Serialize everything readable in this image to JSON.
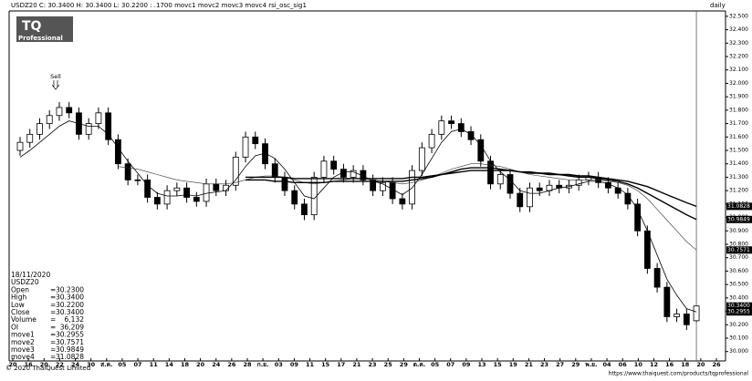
{
  "chart_data": {
    "type": "candlestick",
    "header_prefix": "USDZ20 C: 30.3400 H: 30.3400 L: 30.2200 : .1700",
    "header_suffix": "rsi_osc_sig1",
    "period": "daily",
    "logo": {
      "line1": "TQ",
      "line2": "Professional"
    },
    "annotations": [
      {
        "text": "Sell",
        "index": 4
      }
    ],
    "up_color": "#ffffff",
    "down_color": "#000000",
    "open": [
      31.5,
      31.56,
      31.62,
      31.7,
      31.76,
      31.82,
      31.78,
      31.62,
      31.7,
      31.78,
      31.58,
      31.4,
      31.28,
      31.28,
      31.15,
      31.1,
      31.2,
      31.22,
      31.15,
      31.12,
      31.25,
      31.2,
      31.24,
      31.45,
      31.6,
      31.55,
      31.4,
      31.3,
      31.2,
      31.1,
      31.02,
      31.3,
      31.42,
      31.36,
      31.3,
      31.35,
      31.28,
      31.2,
      31.26,
      31.14,
      31.1,
      31.35,
      31.52,
      31.62,
      31.72,
      31.7,
      31.64,
      31.58,
      31.42,
      31.25,
      31.32,
      31.18,
      31.08,
      31.22,
      31.2,
      31.24,
      31.22,
      31.24,
      31.28,
      31.3,
      31.26,
      31.22,
      31.18,
      31.1,
      30.9,
      30.62,
      30.48,
      30.26,
      30.28,
      30.23
    ],
    "high": [
      31.6,
      31.66,
      31.74,
      31.8,
      31.86,
      31.86,
      31.82,
      31.74,
      31.82,
      31.82,
      31.62,
      31.44,
      31.32,
      31.32,
      31.19,
      31.24,
      31.26,
      31.26,
      31.19,
      31.29,
      31.29,
      31.28,
      31.49,
      31.64,
      31.64,
      31.59,
      31.44,
      31.34,
      31.24,
      31.14,
      31.34,
      31.46,
      31.46,
      31.4,
      31.39,
      31.39,
      31.32,
      31.3,
      31.3,
      31.18,
      31.39,
      31.56,
      31.66,
      31.76,
      31.76,
      31.74,
      31.68,
      31.62,
      31.46,
      31.36,
      31.36,
      31.22,
      31.26,
      31.26,
      31.28,
      31.28,
      31.28,
      31.32,
      31.34,
      31.34,
      31.3,
      31.26,
      31.22,
      31.14,
      30.94,
      30.66,
      30.52,
      30.32,
      30.32,
      30.34
    ],
    "low": [
      31.46,
      31.52,
      31.58,
      31.66,
      31.72,
      31.74,
      31.58,
      31.58,
      31.66,
      31.54,
      31.36,
      31.24,
      31.24,
      31.11,
      31.06,
      31.06,
      31.16,
      31.11,
      31.08,
      31.08,
      31.16,
      31.16,
      31.2,
      31.41,
      31.51,
      31.36,
      31.26,
      31.16,
      31.06,
      30.98,
      30.98,
      31.26,
      31.32,
      31.26,
      31.26,
      31.24,
      31.16,
      31.16,
      31.1,
      31.06,
      31.06,
      31.31,
      31.48,
      31.58,
      31.66,
      31.6,
      31.54,
      31.38,
      31.21,
      31.21,
      31.14,
      31.04,
      31.04,
      31.16,
      31.16,
      31.18,
      31.18,
      31.2,
      31.24,
      31.22,
      31.18,
      31.14,
      31.06,
      30.86,
      30.58,
      30.44,
      30.22,
      30.22,
      30.16,
      30.22
    ],
    "close": [
      31.56,
      31.62,
      31.7,
      31.76,
      31.82,
      31.78,
      31.62,
      31.7,
      31.78,
      31.58,
      31.4,
      31.28,
      31.28,
      31.15,
      31.1,
      31.2,
      31.22,
      31.15,
      31.12,
      31.25,
      31.2,
      31.24,
      31.45,
      31.6,
      31.55,
      31.4,
      31.3,
      31.2,
      31.1,
      31.02,
      31.3,
      31.42,
      31.36,
      31.3,
      31.35,
      31.28,
      31.2,
      31.26,
      31.14,
      31.1,
      31.35,
      31.52,
      31.62,
      31.72,
      31.7,
      31.64,
      31.58,
      31.42,
      31.25,
      31.32,
      31.18,
      31.08,
      31.22,
      31.2,
      31.24,
      31.22,
      31.24,
      31.28,
      31.3,
      31.26,
      31.22,
      31.18,
      31.1,
      30.9,
      30.62,
      30.48,
      30.26,
      30.28,
      30.2,
      30.34
    ],
    "series": [
      {
        "name": "movc1",
        "color": "#000000",
        "values": [
          31.45,
          31.5,
          31.56,
          31.62,
          31.68,
          31.72,
          31.7,
          31.68,
          31.68,
          31.62,
          31.52,
          31.42,
          31.33,
          31.24,
          31.18,
          31.16,
          31.16,
          31.17,
          31.16,
          31.18,
          31.19,
          31.2,
          31.28,
          31.38,
          31.46,
          31.48,
          31.44,
          31.36,
          31.26,
          31.16,
          31.14,
          31.22,
          31.3,
          31.34,
          31.34,
          31.31,
          31.27,
          31.25,
          31.21,
          31.17,
          31.22,
          31.32,
          31.44,
          31.56,
          31.64,
          31.66,
          31.62,
          31.54,
          31.42,
          31.34,
          31.28,
          31.2,
          31.18,
          31.18,
          31.2,
          31.22,
          31.23,
          31.25,
          31.27,
          31.27,
          31.25,
          31.22,
          31.17,
          31.06,
          30.9,
          30.72,
          30.54,
          30.42,
          30.32,
          30.2955
        ]
      },
      {
        "name": "movc2",
        "color": "#333333",
        "values": [
          null,
          null,
          null,
          null,
          null,
          null,
          null,
          null,
          null,
          null,
          31.38,
          31.37,
          31.36,
          31.34,
          31.32,
          31.3,
          31.28,
          31.27,
          31.26,
          31.25,
          31.25,
          31.25,
          31.26,
          31.28,
          31.3,
          31.31,
          31.31,
          31.3,
          31.28,
          31.26,
          31.25,
          31.26,
          31.27,
          31.28,
          31.29,
          31.29,
          31.28,
          31.27,
          31.26,
          31.25,
          31.26,
          31.28,
          31.3,
          31.33,
          31.36,
          31.38,
          31.4,
          31.4,
          31.39,
          31.38,
          31.36,
          31.34,
          31.32,
          31.31,
          31.3,
          31.29,
          31.28,
          31.28,
          31.28,
          31.28,
          31.27,
          31.26,
          31.24,
          31.2,
          31.14,
          31.06,
          30.98,
          30.9,
          30.82,
          30.7571
        ]
      },
      {
        "name": "movc3",
        "color": "#000000",
        "values": [
          null,
          null,
          null,
          null,
          null,
          null,
          null,
          null,
          null,
          null,
          null,
          null,
          null,
          null,
          null,
          null,
          null,
          null,
          null,
          null,
          null,
          null,
          null,
          31.28,
          31.28,
          31.28,
          31.27,
          31.27,
          31.26,
          31.26,
          31.26,
          31.26,
          31.27,
          31.27,
          31.27,
          31.27,
          31.27,
          31.27,
          31.27,
          31.27,
          31.28,
          31.29,
          31.3,
          31.32,
          31.34,
          31.36,
          31.37,
          31.37,
          31.37,
          31.36,
          31.35,
          31.34,
          31.33,
          31.33,
          31.32,
          31.32,
          31.31,
          31.3,
          31.3,
          31.29,
          31.28,
          31.27,
          31.25,
          31.22,
          31.18,
          31.14,
          31.1,
          31.06,
          31.02,
          30.9849
        ]
      },
      {
        "name": "movc4",
        "color": "#000000",
        "values": [
          null,
          null,
          null,
          null,
          null,
          null,
          null,
          null,
          null,
          null,
          null,
          null,
          null,
          null,
          null,
          null,
          null,
          null,
          null,
          null,
          null,
          null,
          null,
          31.3,
          31.3,
          31.3,
          31.3,
          31.3,
          31.29,
          31.29,
          31.29,
          31.29,
          31.29,
          31.29,
          31.29,
          31.29,
          31.29,
          31.29,
          31.29,
          31.29,
          31.3,
          31.3,
          31.31,
          31.32,
          31.33,
          31.34,
          31.35,
          31.35,
          31.35,
          31.35,
          31.35,
          31.34,
          31.34,
          31.33,
          31.33,
          31.32,
          31.32,
          31.31,
          31.31,
          31.3,
          31.29,
          31.28,
          31.27,
          31.25,
          31.23,
          31.2,
          31.17,
          31.14,
          31.11,
          31.0828
        ]
      }
    ],
    "x_labels": [
      "20",
      "16",
      "20",
      "22",
      "24",
      "30",
      "ส.ค.",
      "05",
      "07",
      "11",
      "14",
      "18",
      "20",
      "24",
      "26",
      "28",
      "ก.ย.",
      "03",
      "09",
      "11",
      "15",
      "17",
      "21",
      "23",
      "25",
      "29",
      "ต.ค.",
      "05",
      "07",
      "09",
      "13",
      "15",
      "19",
      "21",
      "23",
      "27",
      "29",
      "พ.ย.",
      "04",
      "06",
      "10",
      "12",
      "16",
      "18",
      "20",
      "26"
    ],
    "ylim": [
      29.93,
      32.54
    ],
    "yticks": [
      {
        "value": 30.0,
        "label": "30.000"
      },
      {
        "value": 30.1,
        "label": "30.100"
      },
      {
        "value": 30.2,
        "label": "30.200"
      },
      {
        "value": 30.3,
        "label": "30.300"
      },
      {
        "value": 30.4,
        "label": "30.400"
      },
      {
        "value": 30.5,
        "label": "30.500"
      },
      {
        "value": 30.6,
        "label": "30.600"
      },
      {
        "value": 30.7,
        "label": "30.700"
      },
      {
        "value": 30.8,
        "label": "30.800"
      },
      {
        "value": 30.9,
        "label": "30.900"
      },
      {
        "value": 31.0,
        "label": "31.000"
      },
      {
        "value": 31.1,
        "label": "31.100"
      },
      {
        "value": 31.2,
        "label": "31.200"
      },
      {
        "value": 31.3,
        "label": "31.300"
      },
      {
        "value": 31.4,
        "label": "31.400"
      },
      {
        "value": 31.5,
        "label": "31.500"
      },
      {
        "value": 31.6,
        "label": "31.600"
      },
      {
        "value": 31.7,
        "label": "31.700"
      },
      {
        "value": 31.8,
        "label": "31.800"
      },
      {
        "value": 31.9,
        "label": "31.900"
      },
      {
        "value": 32.0,
        "label": "32.000"
      },
      {
        "value": 32.1,
        "label": "32.100"
      },
      {
        "value": 32.2,
        "label": "32.200"
      },
      {
        "value": 32.3,
        "label": "32.300"
      },
      {
        "value": 32.4,
        "label": "32.400"
      },
      {
        "value": 32.5,
        "label": "32.500"
      }
    ],
    "axis_markers": [
      "31.0828",
      "30.9849",
      "30.7571",
      "30.3400",
      "30.2955"
    ],
    "info": {
      "date": "18/11/2020",
      "symbol": "USDZ20",
      "separator": "=",
      "rows": [
        [
          "Open",
          "30.2300"
        ],
        [
          "High",
          "30.3400"
        ],
        [
          "Low",
          "30.2200"
        ],
        [
          "Close",
          "30.3400"
        ],
        [
          "Volume",
          "6,132"
        ],
        [
          "OI",
          "36,209"
        ],
        [
          "move1",
          "30.2955"
        ],
        [
          "move2",
          "30.7571"
        ],
        [
          "move3",
          "30.9849"
        ],
        [
          "move4",
          "31.0828"
        ]
      ]
    },
    "footer_left": "© 2020 ThaiQuest Limited",
    "footer_right": "https://www.thaiquest.com/products/tqprofessional"
  }
}
